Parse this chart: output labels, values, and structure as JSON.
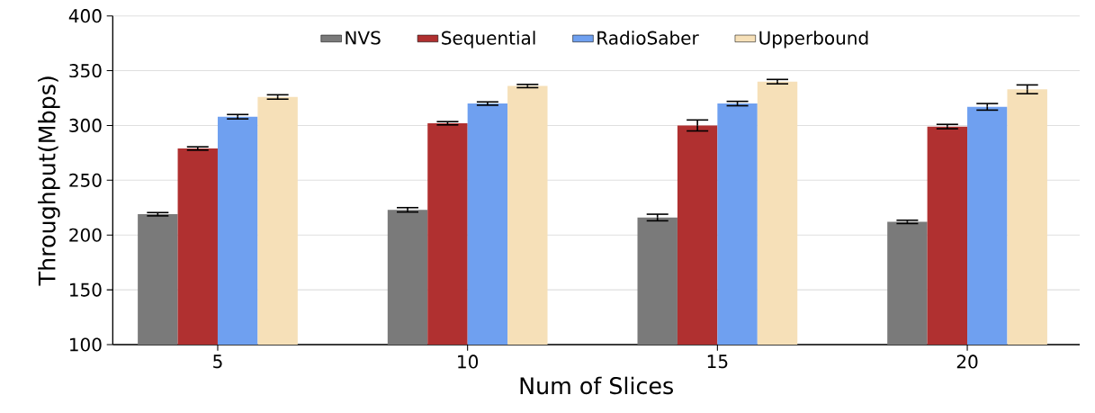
{
  "chart_data": {
    "type": "bar",
    "xlabel": "Num of Slices",
    "ylabel": "Throughput(Mbps)",
    "categories": [
      "5",
      "10",
      "15",
      "20"
    ],
    "series": [
      {
        "name": "NVS",
        "color": "#7a7a7a",
        "values": [
          219,
          223,
          216,
          212
        ],
        "errors": [
          1.5,
          2,
          3,
          1.5
        ]
      },
      {
        "name": "Sequential",
        "color": "#b03030",
        "values": [
          279,
          302,
          300,
          299
        ],
        "errors": [
          1.5,
          1.5,
          5,
          2
        ]
      },
      {
        "name": "RadioSaber",
        "color": "#6fa0f0",
        "values": [
          308,
          320,
          320,
          317
        ],
        "errors": [
          2,
          1.5,
          2,
          3
        ]
      },
      {
        "name": "Upperbound",
        "color": "#f6e0b8",
        "values": [
          326,
          336,
          340,
          333
        ],
        "errors": [
          2,
          1.5,
          2,
          4
        ]
      }
    ],
    "ylim": [
      100,
      400
    ],
    "yticks": [
      100,
      150,
      200,
      250,
      300,
      350,
      400
    ],
    "grid": "y",
    "legend": "top"
  }
}
